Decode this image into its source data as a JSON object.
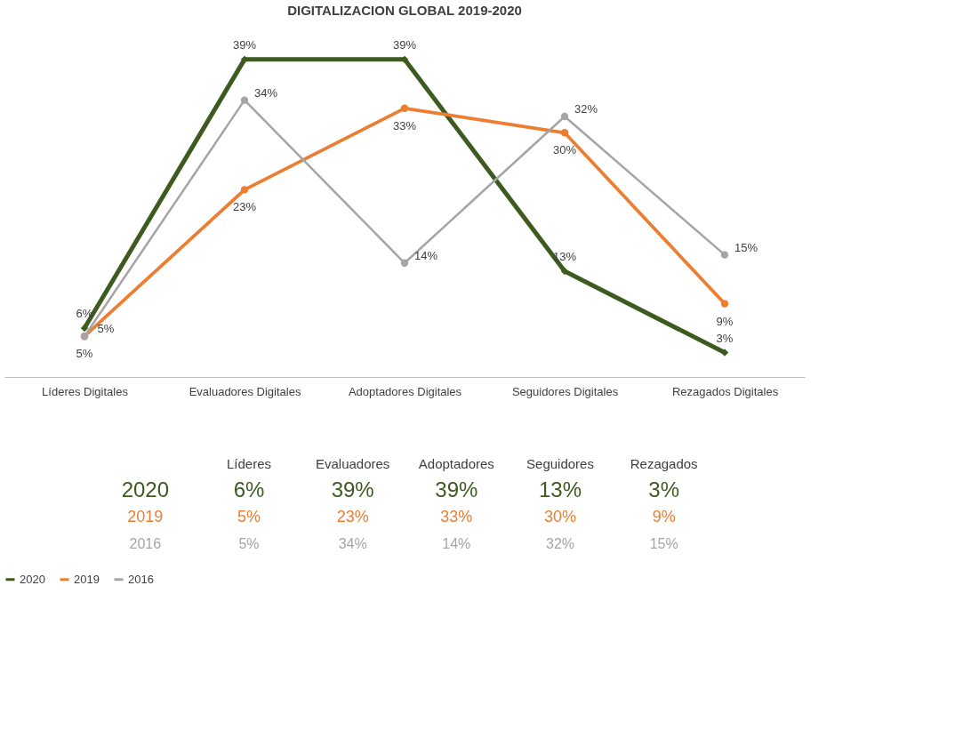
{
  "chart_data": {
    "type": "line",
    "title": "DIGITALIZACION GLOBAL 2019-2020",
    "categories": [
      "Líderes Digitales",
      "Evaluadores Digitales",
      "Adoptadores Digitales",
      "Seguidores Digitales",
      "Rezagados Digitales"
    ],
    "series": [
      {
        "name": "2020",
        "color": "#3d5a1f",
        "marker": "diamond",
        "values": [
          6,
          39,
          39,
          13,
          3
        ],
        "value_labels": [
          "6%",
          "39%",
          "39%",
          "13%",
          "3%"
        ]
      },
      {
        "name": "2019",
        "color": "#ed7d31",
        "marker": "circle",
        "values": [
          5,
          23,
          33,
          30,
          9
        ],
        "value_labels": [
          "5%",
          "23%",
          "33%",
          "30%",
          "9%"
        ]
      },
      {
        "name": "2016",
        "color": "#a5a5a5",
        "marker": "circle",
        "values": [
          5,
          34,
          14,
          32,
          15
        ],
        "value_labels": [
          "5%",
          "34%",
          "14%",
          "32%",
          "15%"
        ]
      }
    ],
    "annotations": [
      "Líderes",
      "Evaluadores",
      "Adoptadores",
      "Seguidores",
      "Rezagados"
    ],
    "data_labels": true,
    "grid": false,
    "legend": "bottom",
    "line_style": "solid"
  }
}
